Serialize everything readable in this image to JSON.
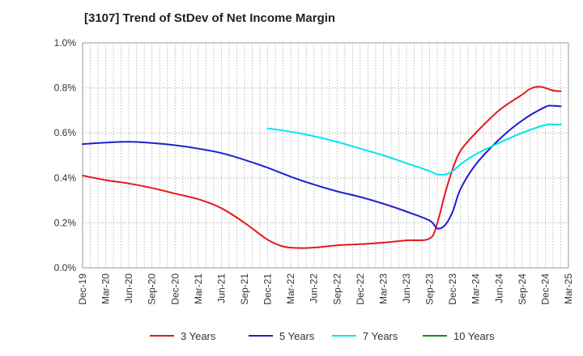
{
  "chart_data": {
    "type": "line",
    "title": "[3107]  Trend of StDev of Net Income Margin",
    "xlabel": "",
    "ylabel": "",
    "x_ticks": [
      "Dec-19",
      "Mar-20",
      "Jun-20",
      "Sep-20",
      "Dec-20",
      "Mar-21",
      "Jun-21",
      "Sep-21",
      "Dec-21",
      "Mar-22",
      "Jun-22",
      "Sep-22",
      "Dec-22",
      "Mar-23",
      "Jun-23",
      "Sep-23",
      "Dec-23",
      "Mar-24",
      "Jun-24",
      "Sep-24",
      "Dec-24",
      "Mar-25"
    ],
    "y_ticks": [
      "0.0%",
      "0.2%",
      "0.4%",
      "0.6%",
      "0.8%",
      "1.0%"
    ],
    "ylim": [
      0,
      1.0
    ],
    "grid": true,
    "legend_position": "bottom",
    "series": [
      {
        "name": "3 Years",
        "color": "#e31a1c",
        "points": [
          [
            "Dec-19",
            0.41
          ],
          [
            "Mar-20",
            0.39
          ],
          [
            "Jun-20",
            0.375
          ],
          [
            "Sep-20",
            0.355
          ],
          [
            "Dec-20",
            0.33
          ],
          [
            "Mar-21",
            0.305
          ],
          [
            "Jun-21",
            0.265
          ],
          [
            "Sep-21",
            0.2
          ],
          [
            "Dec-21",
            0.125
          ],
          [
            "Feb-22",
            0.095
          ],
          [
            "Apr-22",
            0.088
          ],
          [
            "Jun-22",
            0.09
          ],
          [
            "Sep-22",
            0.1
          ],
          [
            "Dec-22",
            0.105
          ],
          [
            "Mar-23",
            0.112
          ],
          [
            "Jun-23",
            0.122
          ],
          [
            "Sep-23",
            0.13
          ],
          [
            "Oct-23",
            0.2
          ],
          [
            "Nov-23",
            0.33
          ],
          [
            "Dec-23",
            0.44
          ],
          [
            "Jan-24",
            0.52
          ],
          [
            "Mar-24",
            0.6
          ],
          [
            "Jun-24",
            0.7
          ],
          [
            "Sep-24",
            0.77
          ],
          [
            "Oct-24",
            0.795
          ],
          [
            "Nov-24",
            0.805
          ],
          [
            "Dec-24",
            0.8
          ],
          [
            "Jan-25",
            0.788
          ],
          [
            "Feb-25",
            0.785
          ]
        ]
      },
      {
        "name": "5 Years",
        "color": "#1f1fcc",
        "points": [
          [
            "Dec-19",
            0.55
          ],
          [
            "Mar-20",
            0.557
          ],
          [
            "Jun-20",
            0.56
          ],
          [
            "Sep-20",
            0.555
          ],
          [
            "Dec-20",
            0.545
          ],
          [
            "Mar-21",
            0.53
          ],
          [
            "Jun-21",
            0.51
          ],
          [
            "Sep-21",
            0.48
          ],
          [
            "Dec-21",
            0.445
          ],
          [
            "Mar-22",
            0.405
          ],
          [
            "Jun-22",
            0.37
          ],
          [
            "Sep-22",
            0.34
          ],
          [
            "Dec-22",
            0.315
          ],
          [
            "Mar-23",
            0.285
          ],
          [
            "Jun-23",
            0.25
          ],
          [
            "Sep-23",
            0.21
          ],
          [
            "Oct-23",
            0.175
          ],
          [
            "Nov-23",
            0.19
          ],
          [
            "Dec-23",
            0.25
          ],
          [
            "Jan-24",
            0.35
          ],
          [
            "Mar-24",
            0.46
          ],
          [
            "Jun-24",
            0.57
          ],
          [
            "Sep-24",
            0.655
          ],
          [
            "Dec-24",
            0.715
          ],
          [
            "Jan-25",
            0.72
          ],
          [
            "Feb-25",
            0.718
          ]
        ]
      },
      {
        "name": "7 Years",
        "color": "#00e5ee",
        "points": [
          [
            "Dec-21",
            0.62
          ],
          [
            "Mar-22",
            0.605
          ],
          [
            "Jun-22",
            0.585
          ],
          [
            "Sep-22",
            0.56
          ],
          [
            "Dec-22",
            0.53
          ],
          [
            "Mar-23",
            0.5
          ],
          [
            "Jun-23",
            0.465
          ],
          [
            "Sep-23",
            0.43
          ],
          [
            "Oct-23",
            0.415
          ],
          [
            "Nov-23",
            0.415
          ],
          [
            "Dec-23",
            0.43
          ],
          [
            "Jan-24",
            0.46
          ],
          [
            "Mar-24",
            0.505
          ],
          [
            "Jun-24",
            0.555
          ],
          [
            "Sep-24",
            0.6
          ],
          [
            "Dec-24",
            0.635
          ],
          [
            "Jan-25",
            0.637
          ],
          [
            "Feb-25",
            0.637
          ]
        ]
      },
      {
        "name": "10 Years",
        "color": "#1a8a1a",
        "points": []
      }
    ]
  }
}
